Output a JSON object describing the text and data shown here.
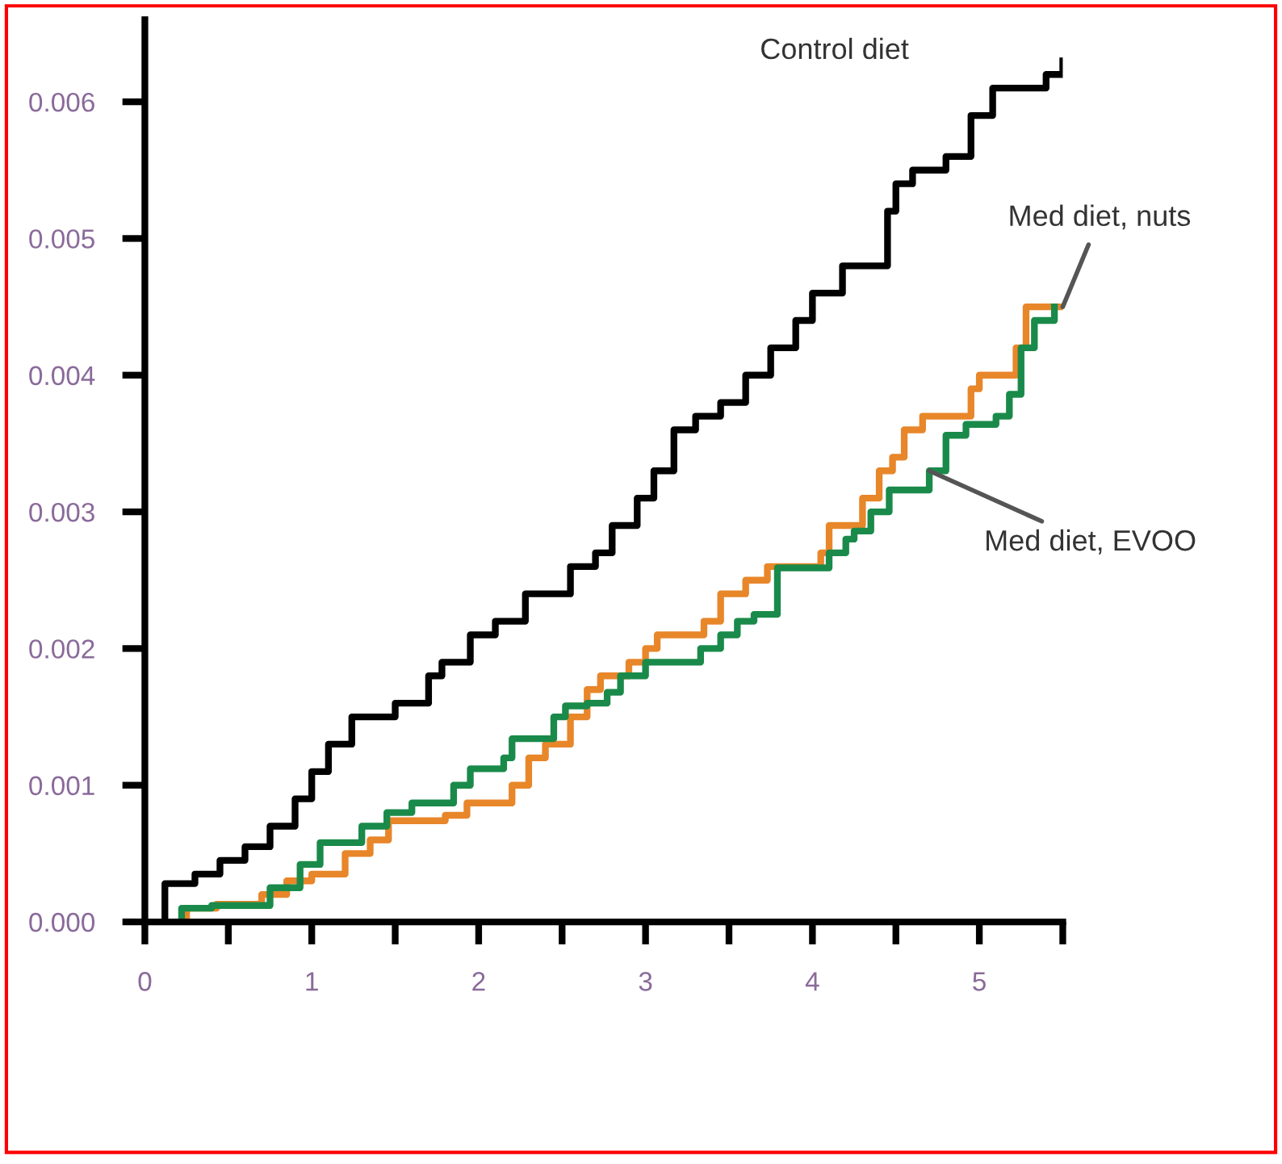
{
  "chart_data": {
    "type": "step",
    "xlim": [
      0,
      5.5
    ],
    "ylim": [
      0,
      0.0066
    ],
    "xticks": [
      0,
      {
        "value": 0.5,
        "label": null
      },
      1,
      {
        "value": 1.5,
        "label": null
      },
      2,
      {
        "value": 2.5,
        "label": null
      },
      3,
      {
        "value": 3.5,
        "label": null
      },
      4,
      {
        "value": 4.5,
        "label": null
      },
      5,
      {
        "value": 5.5,
        "label": null
      }
    ],
    "yticks": [
      {
        "value": 0,
        "label": "0.000"
      },
      {
        "value": 0.001,
        "label": "0.001"
      },
      {
        "value": 0.002,
        "label": "0.002"
      },
      {
        "value": 0.003,
        "label": "0.003"
      },
      {
        "value": 0.004,
        "label": "0.004"
      },
      {
        "value": 0.005,
        "label": "0.005"
      },
      {
        "value": 0.006,
        "label": "0.006"
      }
    ],
    "grid": false,
    "legend": false,
    "marker": "none",
    "line_style": "solid",
    "series": [
      {
        "name": "Control diet",
        "color": "#000000",
        "x": [
          0,
          0.12,
          0.3,
          0.45,
          0.6,
          0.75,
          0.9,
          1.0,
          1.1,
          1.24,
          1.5,
          1.7,
          1.78,
          1.95,
          2.1,
          2.28,
          2.55,
          2.7,
          2.8,
          2.95,
          3.05,
          3.17,
          3.3,
          3.45,
          3.6,
          3.75,
          3.9,
          4.0,
          4.18,
          4.45,
          4.5,
          4.6,
          4.8,
          4.95,
          5.08,
          5.4,
          5.5
        ],
        "values": [
          0,
          0.00028,
          0.00035,
          0.00045,
          0.00055,
          0.0007,
          0.0009,
          0.0011,
          0.0013,
          0.0015,
          0.0016,
          0.0018,
          0.0019,
          0.0021,
          0.0022,
          0.0024,
          0.0026,
          0.0027,
          0.0029,
          0.0031,
          0.0033,
          0.0036,
          0.0037,
          0.0038,
          0.004,
          0.0042,
          0.0044,
          0.0046,
          0.0048,
          0.0052,
          0.0054,
          0.0055,
          0.0056,
          0.0059,
          0.0061,
          0.0062,
          0.0063
        ]
      },
      {
        "name": "Med diet, nuts",
        "color": "#e8862a",
        "x": [
          0,
          0.25,
          0.43,
          0.7,
          0.85,
          1.0,
          1.2,
          1.35,
          1.46,
          1.8,
          1.93,
          2.2,
          2.3,
          2.4,
          2.55,
          2.65,
          2.73,
          2.9,
          3.0,
          3.07,
          3.35,
          3.45,
          3.6,
          3.73,
          4.05,
          4.1,
          4.3,
          4.4,
          4.48,
          4.55,
          4.66,
          4.95,
          5.0,
          5.22,
          5.28,
          5.5
        ],
        "values": [
          0,
          0.0001,
          0.00013,
          0.0002,
          0.0003,
          0.00035,
          0.0005,
          0.0006,
          0.00074,
          0.00078,
          0.00087,
          0.001,
          0.0012,
          0.0013,
          0.0015,
          0.0017,
          0.0018,
          0.0019,
          0.002,
          0.0021,
          0.0022,
          0.0024,
          0.0025,
          0.0026,
          0.0027,
          0.0029,
          0.0031,
          0.0033,
          0.0034,
          0.0036,
          0.0037,
          0.0039,
          0.004,
          0.0042,
          0.0045,
          0.0045
        ]
      },
      {
        "name": "Med diet, EVOO",
        "color": "#1a8a4a",
        "x": [
          0,
          0.22,
          0.4,
          0.75,
          0.93,
          1.05,
          1.3,
          1.45,
          1.6,
          1.85,
          1.95,
          2.15,
          2.2,
          2.45,
          2.52,
          2.65,
          2.77,
          2.85,
          3.0,
          3.33,
          3.45,
          3.55,
          3.65,
          3.79,
          4.1,
          4.2,
          4.25,
          4.35,
          4.46,
          4.7,
          4.8,
          4.92,
          5.1,
          5.18,
          5.25,
          5.33,
          5.45
        ],
        "values": [
          0,
          0.0001,
          0.00012,
          0.00025,
          0.00042,
          0.00058,
          0.0007,
          0.0008,
          0.00087,
          0.001,
          0.00112,
          0.0012,
          0.00134,
          0.0015,
          0.00158,
          0.0016,
          0.00168,
          0.0018,
          0.0019,
          0.002,
          0.0021,
          0.0022,
          0.00225,
          0.00259,
          0.0027,
          0.0028,
          0.00286,
          0.003,
          0.00316,
          0.0033,
          0.00356,
          0.00364,
          0.0037,
          0.00386,
          0.0042,
          0.0044,
          0.0045
        ]
      }
    ]
  }
}
